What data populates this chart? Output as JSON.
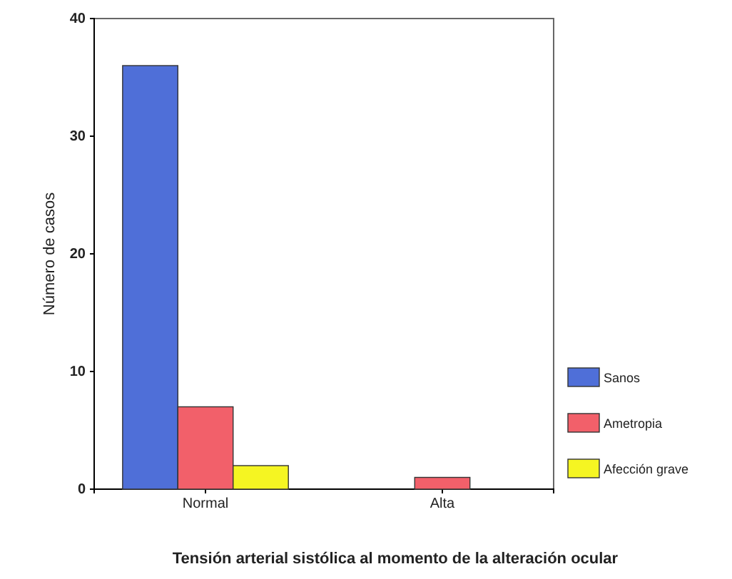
{
  "chart_data": {
    "type": "bar",
    "xlabel": "Tensión arterial sistólica al momento de la alteración ocular",
    "ylabel": "Número de casos",
    "categories": [
      "Normal",
      "Alta"
    ],
    "series": [
      {
        "name": "Sanos",
        "color": "#4f6fd8",
        "values": [
          36,
          0
        ]
      },
      {
        "name": "Ametropia",
        "color": "#f2606a",
        "values": [
          7,
          1
        ]
      },
      {
        "name": "Afección grave",
        "color": "#f5f522",
        "values": [
          2,
          0
        ]
      }
    ],
    "ylim": [
      0,
      40
    ],
    "yticks": [
      0,
      10,
      20,
      30,
      40
    ],
    "legend": "right"
  }
}
